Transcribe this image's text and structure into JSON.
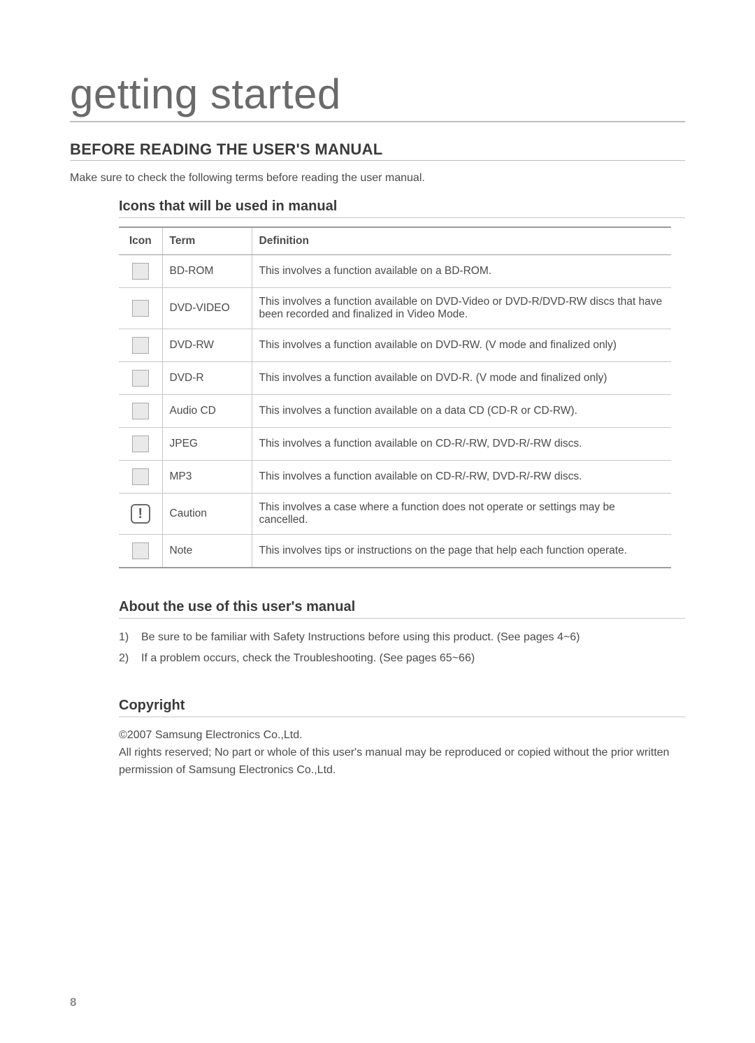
{
  "page": {
    "title": "getting started",
    "number": "8"
  },
  "section1": {
    "heading": "BEFORE READING THE USER'S MANUAL",
    "intro": "Make sure to check the following terms before reading the user manual."
  },
  "iconsTable": {
    "heading": "Icons that will be used in manual",
    "columns": {
      "icon": "Icon",
      "term": "Term",
      "definition": "Definition"
    },
    "rows": [
      {
        "icon_type": "square",
        "term": "BD-ROM",
        "definition": "This involves a function available on a BD-ROM."
      },
      {
        "icon_type": "square",
        "term": "DVD-VIDEO",
        "definition": "This involves a function available on DVD-Video or DVD-R/DVD-RW discs that have been recorded and finalized in Video Mode."
      },
      {
        "icon_type": "square",
        "term": "DVD-RW",
        "definition": "This involves a function available on DVD-RW. (V mode and finalized only)"
      },
      {
        "icon_type": "square",
        "term": "DVD-R",
        "definition": "This involves a function available on DVD-R. (V mode and finalized only)"
      },
      {
        "icon_type": "square",
        "term": "Audio CD",
        "definition": "This involves a function available on a data CD (CD-R or CD-RW)."
      },
      {
        "icon_type": "square",
        "term": "JPEG",
        "definition": "This involves a function available on CD-R/-RW, DVD-R/-RW discs."
      },
      {
        "icon_type": "square",
        "term": "MP3",
        "definition": "This involves a function available on CD-R/-RW, DVD-R/-RW discs."
      },
      {
        "icon_type": "caution",
        "term": "Caution",
        "definition": "This involves a case where a function does not operate or settings may be cancelled."
      },
      {
        "icon_type": "square",
        "term": "Note",
        "definition": "This involves tips or instructions on the page that help each function operate."
      }
    ]
  },
  "aboutUse": {
    "heading": "About the use of this user's manual",
    "items": [
      {
        "num": "1)",
        "text": "Be sure to be familiar with Safety Instructions before using this product. (See pages 4~6)"
      },
      {
        "num": "2)",
        "text": "If a problem occurs, check the Troubleshooting. (See pages 65~66)"
      }
    ]
  },
  "copyright": {
    "heading": "Copyright",
    "line1": "©2007 Samsung Electronics Co.,Ltd.",
    "line2": "All rights reserved; No part or whole of this user's manual may be reproduced or copied without the prior written permission of Samsung Electronics Co.,Ltd."
  }
}
